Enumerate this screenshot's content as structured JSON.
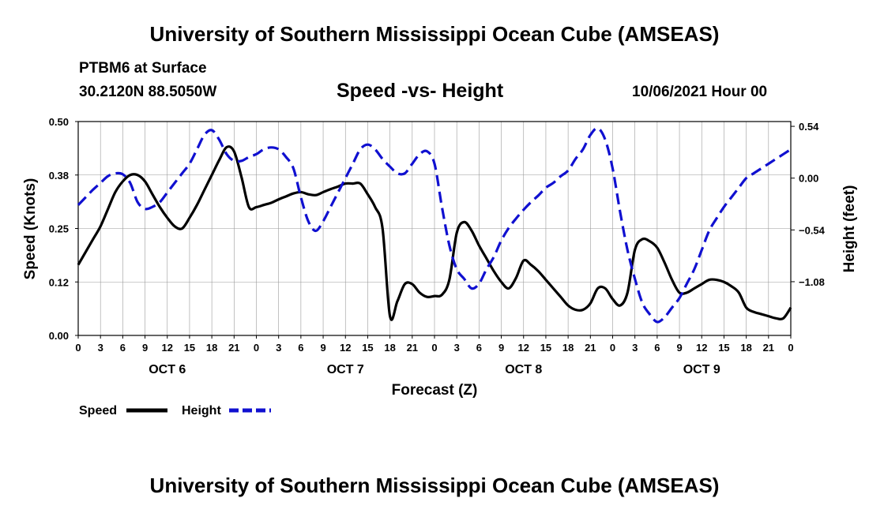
{
  "header": {
    "title_top": "University of Southern Mississippi Ocean Cube (AMSEAS)",
    "title_bottom": "University of Southern Mississippi Ocean Cube (AMSEAS)",
    "station": "PTBM6 at Surface",
    "coords": "30.2120N  88.5050W",
    "chart_title": "Speed -vs- Height",
    "datetime": "10/06/2021 Hour 00"
  },
  "legend": {
    "speed_label": "Speed",
    "height_label": "Height"
  },
  "colors": {
    "speed": "#000000",
    "height": "#1010d0",
    "grid": "#999999"
  },
  "chart_data": {
    "type": "line",
    "title": "Speed -vs- Height",
    "xlabel": "Forecast (Z)",
    "ylabel": "Speed (Knots)",
    "y2label": "Height (feet)",
    "xlim": [
      0,
      96
    ],
    "ylim": [
      0,
      0.5
    ],
    "y2lim": [
      -1.64,
      0.59
    ],
    "x_ticks": [
      0,
      3,
      6,
      9,
      12,
      15,
      18,
      21,
      24,
      27,
      30,
      33,
      36,
      39,
      42,
      45,
      48,
      51,
      54,
      57,
      60,
      63,
      66,
      69,
      72,
      75,
      78,
      81,
      84,
      87,
      90,
      93,
      96
    ],
    "x_tick_labels": [
      "0",
      "3",
      "6",
      "9",
      "12",
      "15",
      "18",
      "21",
      "0",
      "3",
      "6",
      "9",
      "12",
      "15",
      "18",
      "21",
      "0",
      "3",
      "6",
      "9",
      "12",
      "15",
      "18",
      "21",
      "0",
      "3",
      "6",
      "9",
      "12",
      "15",
      "18",
      "21",
      "0"
    ],
    "day_labels": [
      {
        "label": "OCT 6",
        "x": 12
      },
      {
        "label": "OCT 7",
        "x": 36
      },
      {
        "label": "OCT 8",
        "x": 60
      },
      {
        "label": "OCT 9",
        "x": 84
      }
    ],
    "y_ticks": [
      0,
      0.125,
      0.25,
      0.375,
      0.5
    ],
    "y_tick_labels": [
      "0.00",
      "0.12",
      "0.25",
      "0.38",
      "0.50"
    ],
    "y2_ticks": [
      0.54,
      0.0,
      -0.54,
      -1.08
    ],
    "y2_tick_labels": [
      "0.54",
      "0.00",
      "−0.54",
      "−1.08"
    ],
    "grid": true,
    "legend_position": "bottom-left",
    "series": [
      {
        "name": "Speed",
        "axis": "left",
        "style": "solid",
        "x": [
          0,
          1,
          2,
          3,
          4,
          5,
          6,
          7,
          8,
          9,
          10,
          11,
          12,
          13,
          14,
          15,
          16,
          17,
          18,
          19,
          20,
          21,
          22,
          23,
          24,
          25,
          26,
          27,
          28,
          29,
          30,
          31,
          32,
          33,
          34,
          35,
          36,
          37,
          38,
          39,
          40,
          41,
          42,
          43,
          44,
          45,
          46,
          47,
          48,
          49,
          50,
          51,
          52,
          53,
          54,
          55,
          56,
          57,
          58,
          59,
          60,
          61,
          62,
          63,
          64,
          65,
          66,
          67,
          68,
          69,
          70,
          71,
          72,
          73,
          74,
          75,
          76,
          77,
          78,
          79,
          80,
          81,
          82,
          83,
          84,
          85,
          86,
          87,
          88,
          89,
          90,
          91,
          92,
          93,
          94,
          95,
          96
        ],
        "y": [
          0.165,
          0.195,
          0.225,
          0.255,
          0.295,
          0.335,
          0.36,
          0.375,
          0.375,
          0.36,
          0.33,
          0.3,
          0.275,
          0.255,
          0.25,
          0.275,
          0.305,
          0.34,
          0.375,
          0.41,
          0.44,
          0.43,
          0.37,
          0.3,
          0.3,
          0.305,
          0.31,
          0.318,
          0.325,
          0.332,
          0.335,
          0.33,
          0.328,
          0.335,
          0.342,
          0.348,
          0.355,
          0.355,
          0.355,
          0.33,
          0.3,
          0.25,
          0.045,
          0.08,
          0.12,
          0.12,
          0.1,
          0.09,
          0.092,
          0.095,
          0.13,
          0.24,
          0.265,
          0.245,
          0.21,
          0.18,
          0.15,
          0.125,
          0.11,
          0.135,
          0.175,
          0.165,
          0.15,
          0.13,
          0.11,
          0.09,
          0.07,
          0.06,
          0.06,
          0.075,
          0.11,
          0.11,
          0.085,
          0.07,
          0.1,
          0.2,
          0.225,
          0.22,
          0.205,
          0.17,
          0.13,
          0.1,
          0.1,
          0.11,
          0.12,
          0.13,
          0.13,
          0.125,
          0.115,
          0.1,
          0.065,
          0.055,
          0.05,
          0.045,
          0.04,
          0.04,
          0.065
        ]
      },
      {
        "name": "Height",
        "axis": "right",
        "style": "dashed",
        "x": [
          0,
          1,
          2,
          3,
          4,
          5,
          6,
          7,
          8,
          9,
          10,
          11,
          12,
          13,
          14,
          15,
          16,
          17,
          18,
          19,
          20,
          21,
          22,
          23,
          24,
          25,
          26,
          27,
          28,
          29,
          30,
          31,
          32,
          33,
          34,
          35,
          36,
          37,
          38,
          39,
          40,
          41,
          42,
          43,
          44,
          45,
          46,
          47,
          48,
          49,
          50,
          51,
          52,
          53,
          54,
          55,
          56,
          57,
          58,
          59,
          60,
          61,
          62,
          63,
          64,
          65,
          66,
          67,
          68,
          69,
          70,
          71,
          72,
          73,
          74,
          75,
          76,
          77,
          78,
          79,
          80,
          81,
          82,
          83,
          84,
          85,
          86,
          87,
          88,
          89,
          90,
          91,
          92,
          93,
          94,
          95,
          96
        ],
        "y": [
          -0.28,
          -0.2,
          -0.12,
          -0.05,
          0.02,
          0.05,
          0.04,
          -0.05,
          -0.25,
          -0.32,
          -0.3,
          -0.25,
          -0.15,
          -0.05,
          0.05,
          0.15,
          0.3,
          0.45,
          0.5,
          0.4,
          0.25,
          0.18,
          0.18,
          0.22,
          0.25,
          0.3,
          0.32,
          0.3,
          0.22,
          0.1,
          -0.2,
          -0.45,
          -0.55,
          -0.45,
          -0.3,
          -0.15,
          0.0,
          0.15,
          0.3,
          0.35,
          0.3,
          0.2,
          0.12,
          0.05,
          0.05,
          0.15,
          0.25,
          0.28,
          0.15,
          -0.3,
          -0.7,
          -0.95,
          -1.05,
          -1.15,
          -1.1,
          -0.95,
          -0.82,
          -0.65,
          -0.52,
          -0.42,
          -0.33,
          -0.25,
          -0.18,
          -0.1,
          -0.05,
          0.02,
          0.08,
          0.2,
          0.3,
          0.45,
          0.52,
          0.4,
          0.1,
          -0.35,
          -0.75,
          -1.05,
          -1.3,
          -1.42,
          -1.5,
          -1.45,
          -1.35,
          -1.25,
          -1.1,
          -0.95,
          -0.75,
          -0.55,
          -0.42,
          -0.3,
          -0.2,
          -0.1,
          0.0,
          0.05,
          0.1,
          0.15,
          0.2,
          0.25,
          0.3
        ]
      }
    ]
  }
}
